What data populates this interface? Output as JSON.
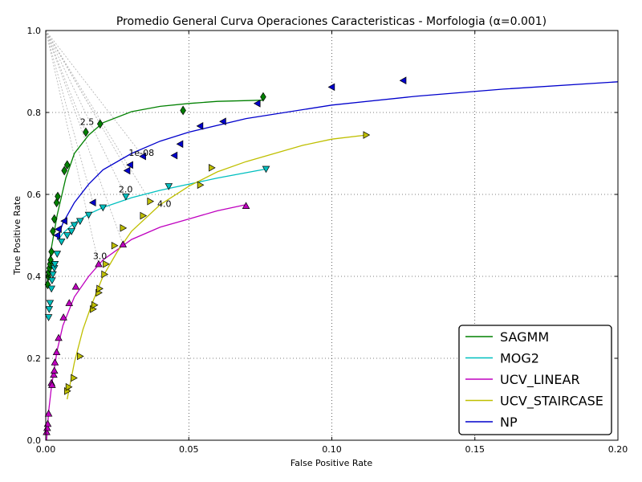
{
  "chart_data": {
    "type": "scatter",
    "title": "Promedio General Curva Operaciones Caracteristicas - Morfologia (α=0.001)",
    "xlabel": "False Positive Rate",
    "ylabel": "True Positive Rate",
    "xlim": [
      0.0,
      0.2
    ],
    "ylim": [
      0.0,
      1.0
    ],
    "xticks": [
      "0.00",
      "0.05",
      "0.10",
      "0.15",
      "0.20"
    ],
    "yticks": [
      "0.0",
      "0.2",
      "0.4",
      "0.6",
      "0.8",
      "1.0"
    ],
    "grid": true,
    "legend_position": "bottom-right",
    "series": [
      {
        "name": "SAGMM",
        "color": "#008000",
        "marker": "diamond",
        "points": [
          [
            0.0007,
            0.38
          ],
          [
            0.0009,
            0.4
          ],
          [
            0.0011,
            0.41
          ],
          [
            0.0013,
            0.42
          ],
          [
            0.0015,
            0.43
          ],
          [
            0.0017,
            0.44
          ],
          [
            0.002,
            0.46
          ],
          [
            0.0025,
            0.51
          ],
          [
            0.003,
            0.54
          ],
          [
            0.0038,
            0.58
          ],
          [
            0.0042,
            0.595
          ],
          [
            0.0065,
            0.658
          ],
          [
            0.0075,
            0.672
          ],
          [
            0.014,
            0.752
          ],
          [
            0.019,
            0.772
          ],
          [
            0.048,
            0.805
          ],
          [
            0.076,
            0.838
          ]
        ],
        "curve": [
          [
            0.0005,
            0.38
          ],
          [
            0.001,
            0.42
          ],
          [
            0.002,
            0.47
          ],
          [
            0.004,
            0.55
          ],
          [
            0.007,
            0.64
          ],
          [
            0.01,
            0.7
          ],
          [
            0.015,
            0.745
          ],
          [
            0.02,
            0.775
          ],
          [
            0.03,
            0.802
          ],
          [
            0.04,
            0.815
          ],
          [
            0.05,
            0.822
          ],
          [
            0.06,
            0.827
          ],
          [
            0.076,
            0.83
          ]
        ]
      },
      {
        "name": "MOG2",
        "color": "#00bfbf",
        "marker": "triangle-down",
        "points": [
          [
            0.001,
            0.3
          ],
          [
            0.0012,
            0.32
          ],
          [
            0.0015,
            0.335
          ],
          [
            0.002,
            0.37
          ],
          [
            0.0022,
            0.39
          ],
          [
            0.0025,
            0.405
          ],
          [
            0.003,
            0.42
          ],
          [
            0.0032,
            0.43
          ],
          [
            0.004,
            0.455
          ],
          [
            0.0055,
            0.485
          ],
          [
            0.0075,
            0.5
          ],
          [
            0.009,
            0.51
          ],
          [
            0.01,
            0.525
          ],
          [
            0.012,
            0.535
          ],
          [
            0.015,
            0.55
          ],
          [
            0.02,
            0.568
          ],
          [
            0.028,
            0.595
          ],
          [
            0.043,
            0.62
          ],
          [
            0.077,
            0.662
          ]
        ],
        "curve": [
          [
            0.0045,
            0.49
          ],
          [
            0.006,
            0.505
          ],
          [
            0.01,
            0.53
          ],
          [
            0.015,
            0.552
          ],
          [
            0.02,
            0.568
          ],
          [
            0.03,
            0.592
          ],
          [
            0.04,
            0.61
          ],
          [
            0.05,
            0.625
          ],
          [
            0.06,
            0.64
          ],
          [
            0.077,
            0.662
          ]
        ]
      },
      {
        "name": "UCV_LINEAR",
        "color": "#bf00bf",
        "marker": "triangle-up",
        "points": [
          [
            0.0003,
            0.02
          ],
          [
            0.0005,
            0.03
          ],
          [
            0.0007,
            0.04
          ],
          [
            0.001,
            0.065
          ],
          [
            0.002,
            0.14
          ],
          [
            0.0022,
            0.135
          ],
          [
            0.0028,
            0.16
          ],
          [
            0.003,
            0.17
          ],
          [
            0.0032,
            0.19
          ],
          [
            0.0038,
            0.215
          ],
          [
            0.0045,
            0.25
          ],
          [
            0.0062,
            0.3
          ],
          [
            0.0082,
            0.335
          ],
          [
            0.0105,
            0.375
          ],
          [
            0.0185,
            0.43
          ],
          [
            0.027,
            0.478
          ],
          [
            0.07,
            0.572
          ]
        ],
        "curve": [
          [
            0.0003,
            0.0
          ],
          [
            0.001,
            0.07
          ],
          [
            0.002,
            0.13
          ],
          [
            0.004,
            0.22
          ],
          [
            0.006,
            0.28
          ],
          [
            0.01,
            0.35
          ],
          [
            0.015,
            0.4
          ],
          [
            0.02,
            0.44
          ],
          [
            0.03,
            0.49
          ],
          [
            0.04,
            0.52
          ],
          [
            0.05,
            0.54
          ],
          [
            0.06,
            0.56
          ],
          [
            0.07,
            0.575
          ]
        ]
      },
      {
        "name": "UCV_STAIRCASE",
        "color": "#bfbf00",
        "marker": "triangle-right",
        "points": [
          [
            0.0075,
            0.12
          ],
          [
            0.008,
            0.13
          ],
          [
            0.0098,
            0.152
          ],
          [
            0.012,
            0.205
          ],
          [
            0.0165,
            0.32
          ],
          [
            0.017,
            0.33
          ],
          [
            0.0185,
            0.36
          ],
          [
            0.0188,
            0.37
          ],
          [
            0.0205,
            0.405
          ],
          [
            0.021,
            0.43
          ],
          [
            0.024,
            0.475
          ],
          [
            0.027,
            0.518
          ],
          [
            0.034,
            0.548
          ],
          [
            0.0365,
            0.583
          ],
          [
            0.054,
            0.623
          ],
          [
            0.058,
            0.665
          ],
          [
            0.112,
            0.745
          ]
        ],
        "curve": [
          [
            0.0075,
            0.1
          ],
          [
            0.01,
            0.19
          ],
          [
            0.013,
            0.27
          ],
          [
            0.016,
            0.33
          ],
          [
            0.02,
            0.4
          ],
          [
            0.025,
            0.46
          ],
          [
            0.03,
            0.51
          ],
          [
            0.04,
            0.575
          ],
          [
            0.05,
            0.62
          ],
          [
            0.06,
            0.655
          ],
          [
            0.07,
            0.68
          ],
          [
            0.08,
            0.7
          ],
          [
            0.09,
            0.72
          ],
          [
            0.1,
            0.735
          ],
          [
            0.112,
            0.745
          ]
        ]
      },
      {
        "name": "NP",
        "color": "#0000cc",
        "marker": "triangle-left",
        "points": [
          [
            0.004,
            0.5
          ],
          [
            0.0045,
            0.515
          ],
          [
            0.0065,
            0.535
          ],
          [
            0.0165,
            0.58
          ],
          [
            0.0285,
            0.658
          ],
          [
            0.0295,
            0.672
          ],
          [
            0.034,
            0.693
          ],
          [
            0.045,
            0.695
          ],
          [
            0.047,
            0.723
          ],
          [
            0.054,
            0.767
          ],
          [
            0.062,
            0.778
          ],
          [
            0.074,
            0.822
          ],
          [
            0.1,
            0.862
          ],
          [
            0.125,
            0.878
          ]
        ],
        "curve": [
          [
            0.004,
            0.49
          ],
          [
            0.006,
            0.53
          ],
          [
            0.01,
            0.58
          ],
          [
            0.015,
            0.625
          ],
          [
            0.02,
            0.66
          ],
          [
            0.03,
            0.7
          ],
          [
            0.04,
            0.73
          ],
          [
            0.05,
            0.752
          ],
          [
            0.07,
            0.785
          ],
          [
            0.1,
            0.818
          ],
          [
            0.13,
            0.84
          ],
          [
            0.16,
            0.857
          ],
          [
            0.2,
            0.875
          ]
        ]
      }
    ],
    "annotations": [
      {
        "text": "2.5",
        "x": 0.012,
        "y": 0.77
      },
      {
        "text": "1e-08",
        "x": 0.029,
        "y": 0.694
      },
      {
        "text": "2.0",
        "x": 0.0255,
        "y": 0.605
      },
      {
        "text": "4.0",
        "x": 0.039,
        "y": 0.57
      },
      {
        "text": "3.0",
        "x": 0.0165,
        "y": 0.442
      }
    ],
    "guide_lines_origin": [
      0.0,
      1.0
    ],
    "guide_lines_targets": [
      [
        0.014,
        0.752
      ],
      [
        0.0285,
        0.658
      ],
      [
        0.028,
        0.595
      ],
      [
        0.0365,
        0.583
      ],
      [
        0.0185,
        0.43
      ],
      [
        0.027,
        0.478
      ],
      [
        0.019,
        0.772
      ],
      [
        0.034,
        0.693
      ],
      [
        0.0165,
        0.58
      ]
    ]
  }
}
